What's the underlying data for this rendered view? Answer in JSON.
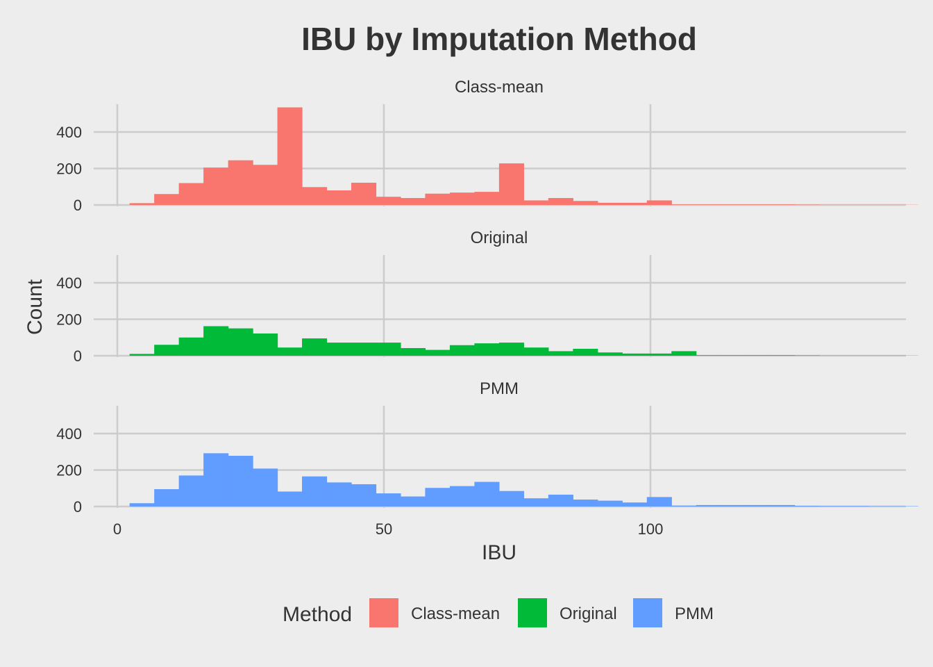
{
  "chart_data": {
    "type": "bar",
    "title": "IBU by Imputation Method",
    "xlabel": "IBU",
    "ylabel": "Count",
    "xlim": [
      -5,
      148
    ],
    "ylim": [
      0,
      550
    ],
    "xticks": [
      0,
      50,
      100
    ],
    "yticks": [
      0,
      200,
      400
    ],
    "bin_width": 4.62,
    "bin_start": 2.3,
    "grid": true,
    "legend_title": "Method",
    "legend_position": "bottom",
    "panels": [
      {
        "name": "Class-mean",
        "color": "#F8766D",
        "counts": [
          10,
          60,
          120,
          205,
          245,
          220,
          535,
          98,
          80,
          122,
          45,
          38,
          62,
          68,
          72,
          228,
          25,
          38,
          22,
          12,
          12,
          25,
          3,
          3,
          3,
          3,
          3,
          2,
          1,
          1,
          1,
          1
        ]
      },
      {
        "name": "Original",
        "color": "#00BA38",
        "counts": [
          10,
          60,
          100,
          162,
          150,
          122,
          45,
          95,
          72,
          72,
          72,
          42,
          32,
          58,
          68,
          72,
          45,
          25,
          38,
          18,
          12,
          12,
          25,
          3,
          3,
          3,
          3,
          2,
          1,
          1,
          1,
          1
        ]
      },
      {
        "name": "PMM",
        "color": "#619CFF",
        "counts": [
          18,
          95,
          170,
          292,
          278,
          208,
          82,
          165,
          132,
          122,
          72,
          55,
          102,
          112,
          135,
          85,
          45,
          65,
          38,
          32,
          22,
          52,
          5,
          8,
          8,
          8,
          8,
          4,
          3,
          3,
          2,
          2
        ]
      }
    ]
  }
}
